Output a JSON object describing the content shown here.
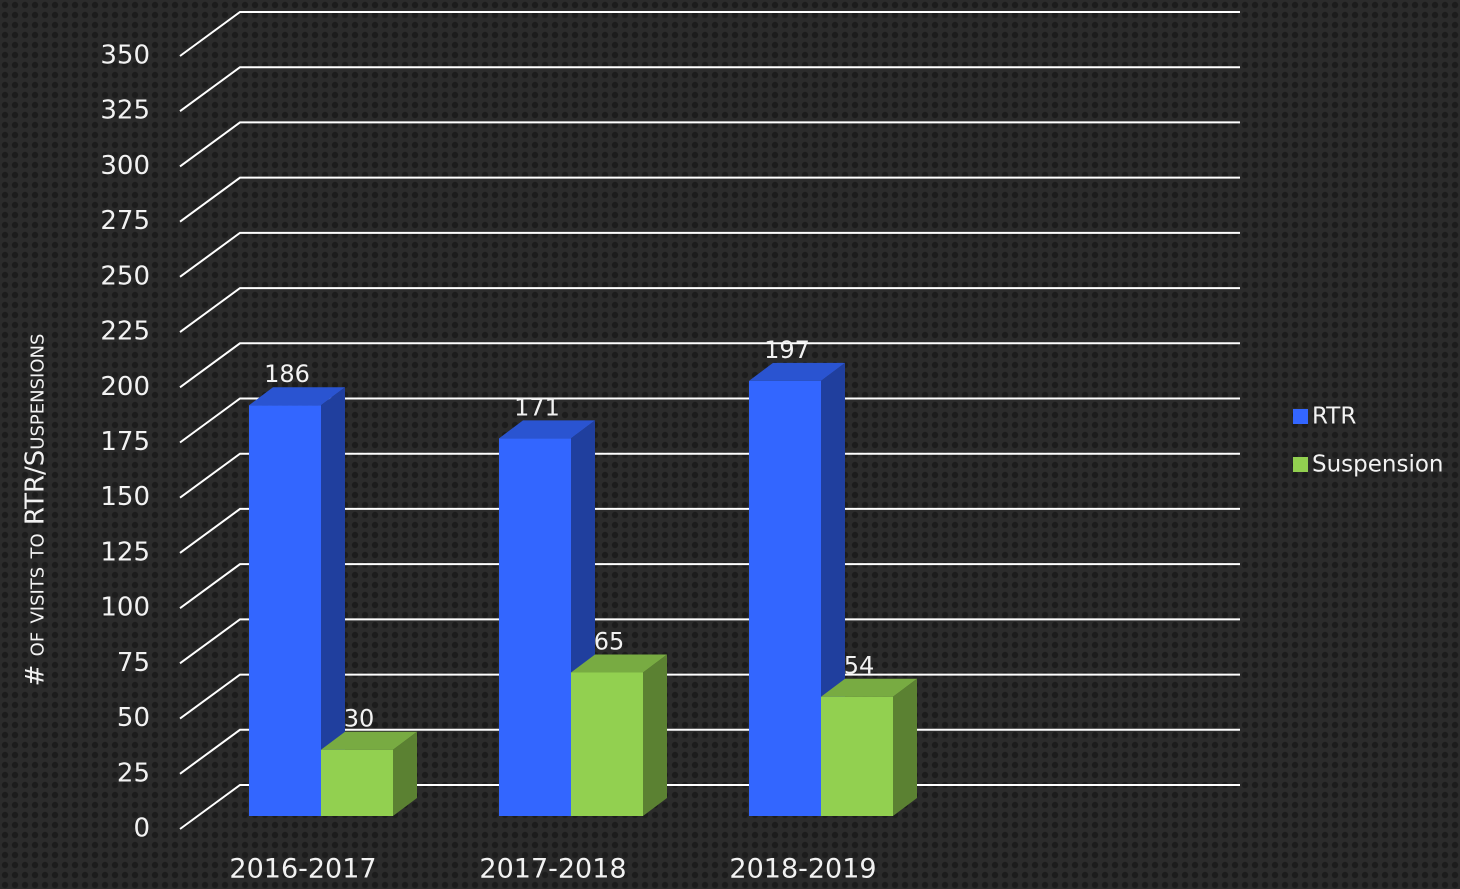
{
  "chart_data": {
    "type": "bar3d",
    "y_label": "# of visits to RTR/Suspensions",
    "categories": [
      "2016-2017",
      "2017-2018",
      "2018-2019"
    ],
    "series": [
      {
        "name": "RTR",
        "color": "#3366ff",
        "values": [
          186,
          171,
          197
        ]
      },
      {
        "name": "Suspension",
        "color": "#92d050",
        "values": [
          30,
          65,
          54
        ]
      }
    ],
    "ylim": [
      0,
      350
    ],
    "yticks": [
      0,
      25,
      50,
      75,
      100,
      125,
      150,
      175,
      200,
      225,
      250,
      275,
      300,
      325,
      350
    ],
    "grid": true,
    "legend": "right"
  }
}
